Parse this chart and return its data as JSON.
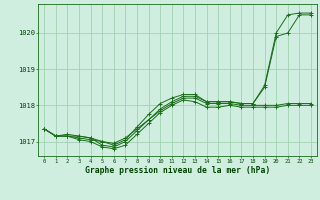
{
  "title": "Graphe pression niveau de la mer (hPa)",
  "hours": [
    0,
    1,
    2,
    3,
    4,
    5,
    6,
    7,
    8,
    9,
    10,
    11,
    12,
    13,
    14,
    15,
    16,
    17,
    18,
    19,
    20,
    21,
    22,
    23
  ],
  "series": [
    [
      1017.35,
      1017.15,
      1017.15,
      1017.1,
      1017.05,
      1017.0,
      1016.95,
      1017.1,
      1017.35,
      1017.6,
      1017.85,
      1018.05,
      1018.2,
      1018.2,
      1018.05,
      1018.05,
      1018.05,
      1018.0,
      1018.0,
      1018.0,
      1018.0,
      1018.05,
      1018.05,
      1018.05
    ],
    [
      1017.35,
      1017.15,
      1017.15,
      1017.05,
      1017.0,
      1016.85,
      1016.8,
      1016.9,
      1017.2,
      1017.5,
      1017.8,
      1018.0,
      1018.15,
      1018.1,
      1017.95,
      1017.95,
      1018.0,
      1017.95,
      1017.95,
      1017.95,
      1017.95,
      1018.0,
      1018.0,
      1018.0
    ],
    [
      1017.35,
      1017.15,
      1017.2,
      1017.15,
      1017.1,
      1016.9,
      1016.85,
      1017.0,
      1017.3,
      1017.6,
      1017.9,
      1018.1,
      1018.25,
      1018.25,
      1018.1,
      1018.1,
      1018.1,
      1018.05,
      1018.05,
      1018.5,
      1019.9,
      1020.0,
      1020.5,
      1020.5
    ],
    [
      1017.35,
      1017.15,
      1017.15,
      1017.15,
      1017.1,
      1017.0,
      1016.9,
      1017.05,
      1017.4,
      1017.75,
      1018.05,
      1018.2,
      1018.3,
      1018.3,
      1018.1,
      1018.1,
      1018.1,
      1018.05,
      1018.05,
      1018.55,
      1020.0,
      1020.5,
      1020.55,
      1020.55
    ]
  ],
  "bg_color": "#d0eee0",
  "grid_color": "#99ccaa",
  "line_color": "#1a6e1a",
  "ylim": [
    1016.6,
    1020.8
  ],
  "yticks": [
    1017,
    1018,
    1019,
    1020
  ],
  "title_color": "#004400"
}
